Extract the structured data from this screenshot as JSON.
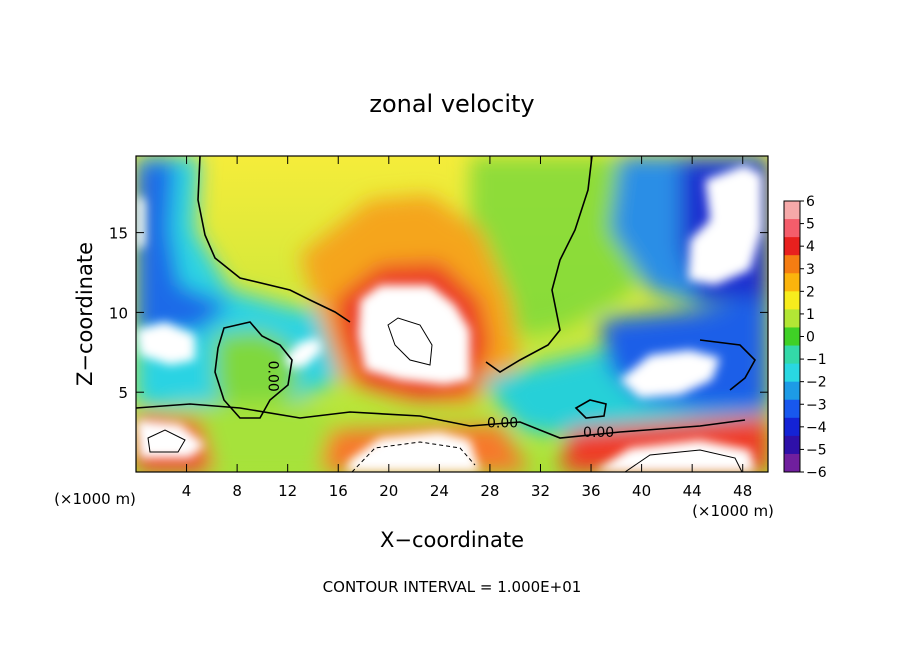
{
  "chart_data": {
    "type": "heatmap",
    "title": "zonal velocity",
    "xlabel": "X−coordinate",
    "ylabel": "Z−coordinate",
    "x_unit_left": "(×1000 m)",
    "x_unit_right": "(×1000 m)",
    "footnote": "CONTOUR INTERVAL = 1.000E+01",
    "xlim": [
      0,
      50
    ],
    "ylim": [
      0,
      19.8
    ],
    "x_ticks": [
      {
        "value": 4,
        "label": "4"
      },
      {
        "value": 8,
        "label": "8"
      },
      {
        "value": 12,
        "label": "12"
      },
      {
        "value": 16,
        "label": "16"
      },
      {
        "value": 20,
        "label": "20"
      },
      {
        "value": 24,
        "label": "24"
      },
      {
        "value": 28,
        "label": "28"
      },
      {
        "value": 32,
        "label": "32"
      },
      {
        "value": 36,
        "label": "36"
      },
      {
        "value": 40,
        "label": "40"
      },
      {
        "value": 44,
        "label": "44"
      },
      {
        "value": 48,
        "label": "48"
      }
    ],
    "y_ticks": [
      {
        "value": 5,
        "label": "5"
      },
      {
        "value": 10,
        "label": "10"
      },
      {
        "value": 15,
        "label": "15"
      }
    ],
    "colorbar": {
      "min": -6,
      "max": 6,
      "labels": [
        "6",
        "5",
        "4",
        "3",
        "2",
        "1",
        "0",
        "−1",
        "−2",
        "−3",
        "−4",
        "−5",
        "−6"
      ],
      "colors": [
        "#f6a9a9",
        "#f45d6b",
        "#e8201e",
        "#f57d12",
        "#fbb40c",
        "#f7ec1d",
        "#b2e635",
        "#3fd126",
        "#33d9a8",
        "#29d8e2",
        "#1d9be6",
        "#1858ee",
        "#1423d5",
        "#2e10a8",
        "#701f9e"
      ]
    },
    "contour_labels": [
      {
        "x": 10.5,
        "z": 6.0,
        "text": "0.00"
      },
      {
        "x": 29.0,
        "z": 2.8,
        "text": "0.00"
      },
      {
        "x": 36.6,
        "z": 2.2,
        "text": "0.00"
      }
    ]
  }
}
